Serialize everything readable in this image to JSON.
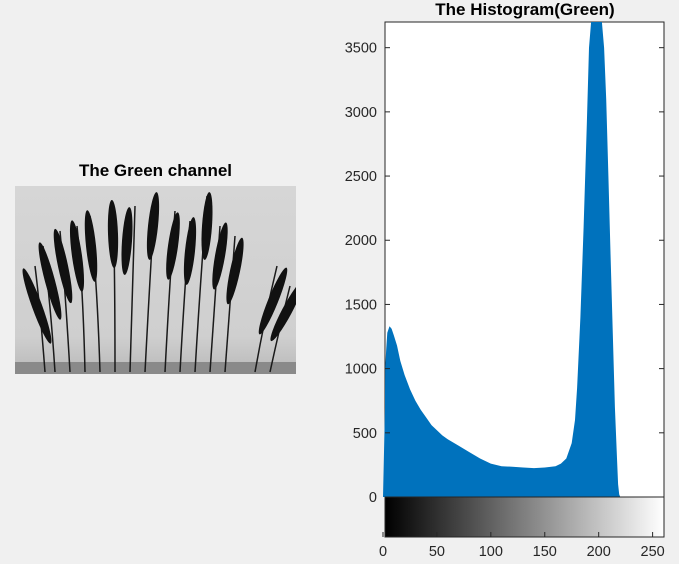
{
  "left_panel": {
    "title": "The Green channel"
  },
  "chart_data": {
    "type": "bar",
    "title": "The Histogram(Green)",
    "xlabel": "",
    "ylabel": "",
    "xlim": [
      0,
      255
    ],
    "ylim": [
      0,
      3700
    ],
    "x_ticks": [
      0,
      50,
      100,
      150,
      200,
      250
    ],
    "y_ticks": [
      0,
      500,
      1000,
      1500,
      2000,
      2500,
      3000,
      3500
    ],
    "bar_color": "#0072bd",
    "colorbar": "grayscale 0-255",
    "envelope": [
      [
        0,
        700
      ],
      [
        1,
        800
      ],
      [
        2,
        1000
      ],
      [
        3,
        1150
      ],
      [
        4,
        1280
      ],
      [
        6,
        1330
      ],
      [
        8,
        1310
      ],
      [
        10,
        1260
      ],
      [
        13,
        1180
      ],
      [
        16,
        1060
      ],
      [
        20,
        950
      ],
      [
        25,
        840
      ],
      [
        30,
        750
      ],
      [
        35,
        680
      ],
      [
        40,
        620
      ],
      [
        45,
        560
      ],
      [
        50,
        520
      ],
      [
        55,
        480
      ],
      [
        60,
        450
      ],
      [
        70,
        400
      ],
      [
        80,
        350
      ],
      [
        90,
        300
      ],
      [
        100,
        260
      ],
      [
        110,
        240
      ],
      [
        120,
        235
      ],
      [
        130,
        230
      ],
      [
        140,
        225
      ],
      [
        150,
        230
      ],
      [
        160,
        240
      ],
      [
        165,
        260
      ],
      [
        170,
        300
      ],
      [
        175,
        420
      ],
      [
        178,
        600
      ],
      [
        180,
        850
      ],
      [
        183,
        1400
      ],
      [
        186,
        2100
      ],
      [
        189,
        2900
      ],
      [
        191,
        3500
      ],
      [
        193,
        3700
      ],
      [
        203,
        3700
      ],
      [
        205,
        3500
      ],
      [
        207,
        3100
      ],
      [
        209,
        2500
      ],
      [
        211,
        1900
      ],
      [
        213,
        1300
      ],
      [
        215,
        700
      ],
      [
        217,
        300
      ],
      [
        218,
        100
      ],
      [
        219,
        20
      ],
      [
        220,
        0
      ],
      [
        255,
        0
      ]
    ]
  }
}
